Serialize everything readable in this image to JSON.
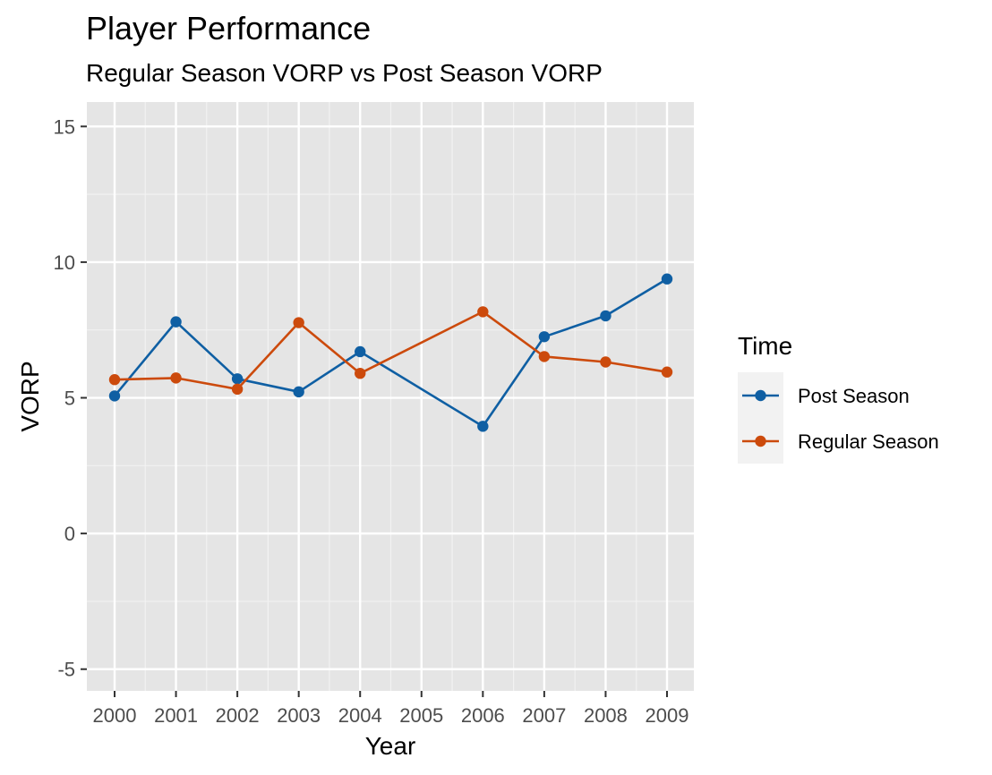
{
  "chart_data": {
    "type": "line",
    "title": "Player Performance",
    "subtitle": "Regular Season VORP vs Post Season VORP",
    "xlabel": "Year",
    "ylabel": "VORP",
    "x": [
      2000,
      2001,
      2002,
      2003,
      2004,
      2005,
      2006,
      2007,
      2008,
      2009
    ],
    "ylim": [
      -5.8,
      15.9
    ],
    "yticks": [
      -5,
      0,
      5,
      10,
      15
    ],
    "grid": true,
    "legend_title": "Time",
    "legend_position": "right",
    "series": [
      {
        "name": "Post Season",
        "color": "#0f5fa3",
        "points": [
          [
            2000,
            5.07
          ],
          [
            2001,
            7.8
          ],
          [
            2002,
            5.7
          ],
          [
            2003,
            5.22
          ],
          [
            2004,
            6.7
          ],
          [
            2006,
            3.95
          ],
          [
            2007,
            7.25
          ],
          [
            2008,
            8.02
          ],
          [
            2009,
            9.38
          ]
        ]
      },
      {
        "name": "Regular Season",
        "color": "#cc4a0c",
        "points": [
          [
            2000,
            5.67
          ],
          [
            2001,
            5.73
          ],
          [
            2002,
            5.32
          ],
          [
            2003,
            7.77
          ],
          [
            2004,
            5.9
          ],
          [
            2006,
            8.17
          ],
          [
            2007,
            6.52
          ],
          [
            2008,
            6.32
          ],
          [
            2009,
            5.95
          ]
        ]
      }
    ]
  }
}
